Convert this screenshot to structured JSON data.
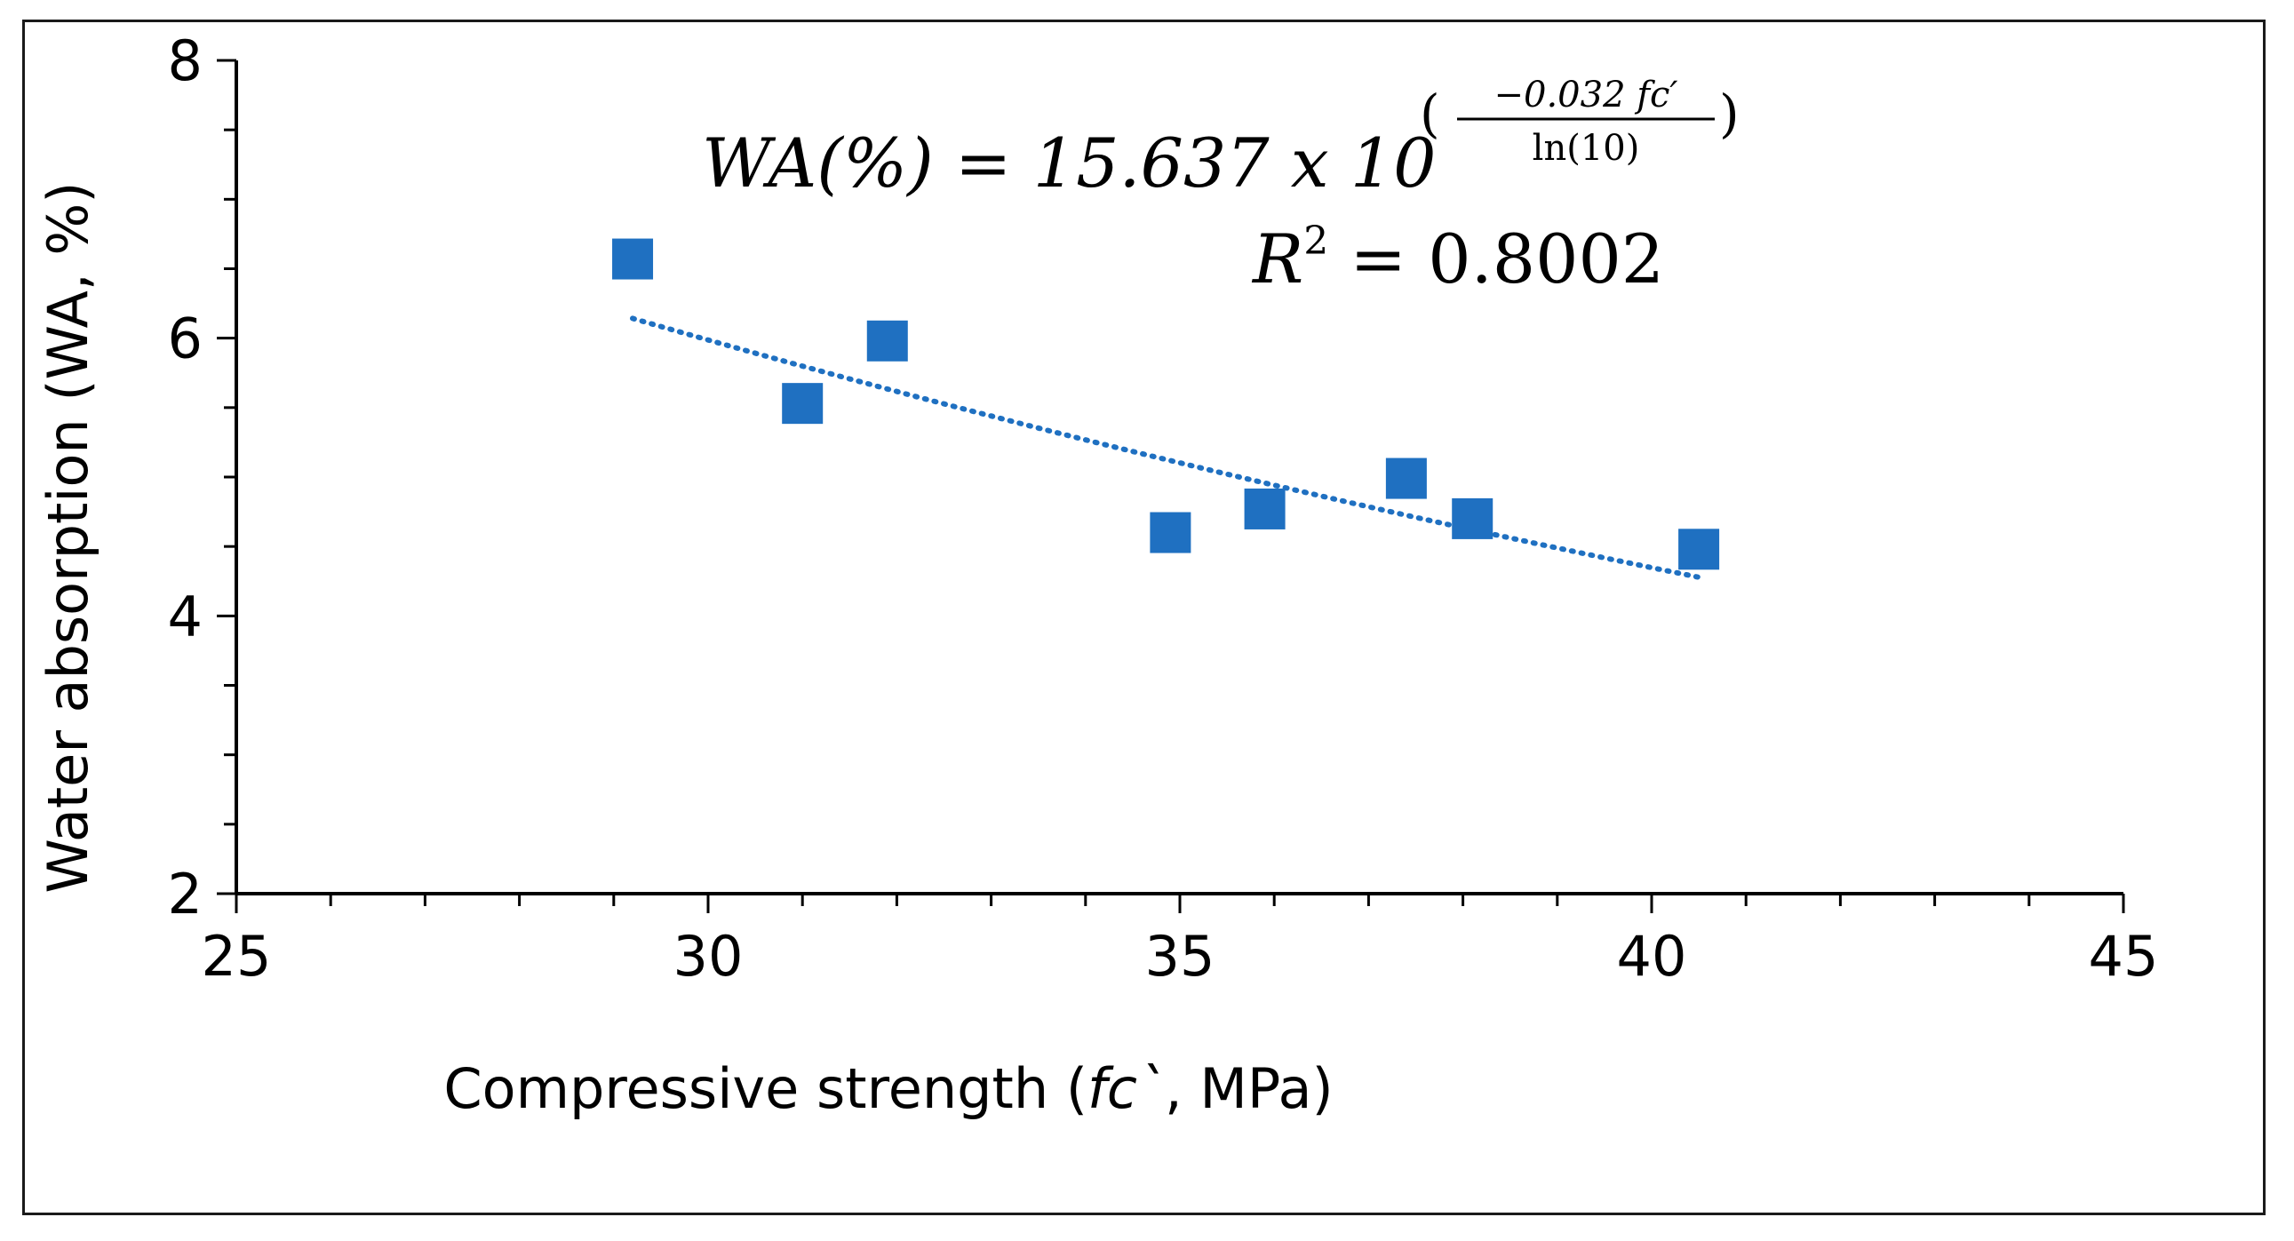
{
  "chart_data": {
    "type": "scatter",
    "title": "",
    "xlabel_prefix": "Compressive strength (",
    "xlabel_var": "fc`",
    "xlabel_suffix": ", MPa)",
    "ylabel": "Water absorption (WA, %)",
    "xlim": [
      25,
      45
    ],
    "ylim": [
      2,
      8
    ],
    "x_ticks": [
      25,
      30,
      35,
      40,
      45
    ],
    "y_ticks": [
      2,
      4,
      6,
      8
    ],
    "series": [
      {
        "name": "Water absorption",
        "marker": "square",
        "color": "#1f70c1",
        "x": [
          29.2,
          31.0,
          31.9,
          34.9,
          35.9,
          37.4,
          38.1,
          40.5
        ],
        "y": [
          6.57,
          5.53,
          5.98,
          4.6,
          4.77,
          4.99,
          4.7,
          4.48
        ]
      }
    ],
    "trendline": {
      "type": "exponential",
      "style": "dotted",
      "color": "#1f70c1",
      "coefficient": 15.637,
      "rate": -0.032,
      "x_range": [
        29.2,
        40.5
      ]
    },
    "annotations": {
      "equation_lhs": "WA(%) = 15.637 x 10",
      "exponent_numerator": "−0.032 fc′",
      "exponent_denominator": "ln(10)",
      "r2_label": "R",
      "r2_value": " = 0.8002"
    }
  }
}
